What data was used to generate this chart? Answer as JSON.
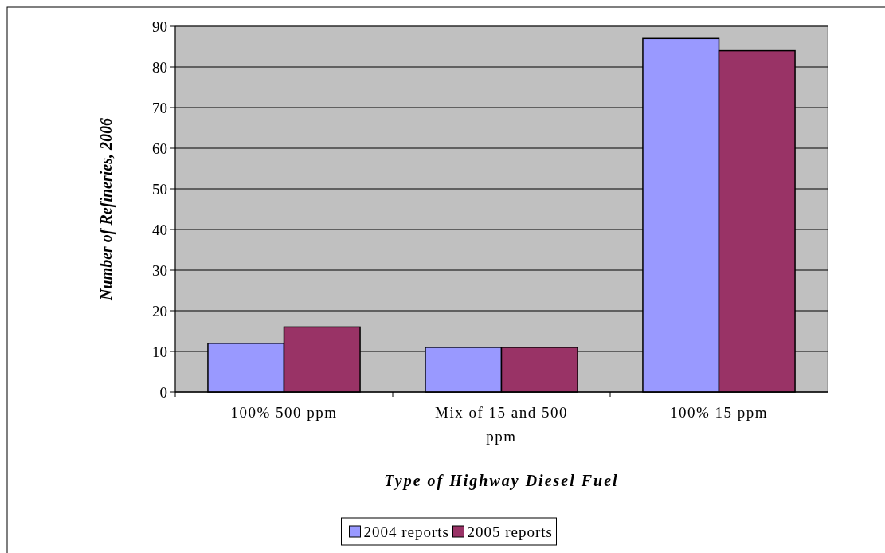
{
  "chart_data": {
    "type": "bar",
    "xlabel": "Type of Highway Diesel Fuel",
    "ylabel": "Number of Refineries, 2006",
    "categories": [
      "100%  500 ppm",
      "Mix of 15 and 500 ppm",
      "100% 15 ppm"
    ],
    "series": [
      {
        "name": "2004 reports",
        "color": "#9999ff",
        "values": [
          12,
          11,
          87
        ]
      },
      {
        "name": "2005 reports",
        "color": "#993366",
        "values": [
          16,
          11,
          84
        ]
      }
    ],
    "ylim": [
      0,
      90
    ],
    "yticks": [
      0,
      10,
      20,
      30,
      40,
      50,
      60,
      70,
      80,
      90
    ],
    "grid": "y",
    "legend": "bottom"
  }
}
